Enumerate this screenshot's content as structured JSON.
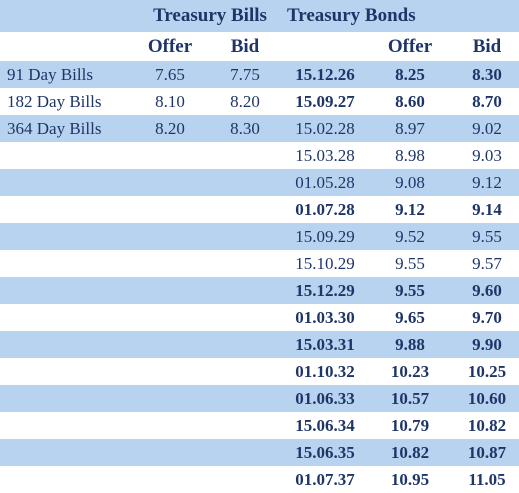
{
  "header": {
    "bills_title": "Treasury Bills",
    "bonds_title": "Treasury Bonds",
    "columns": [
      "Offer",
      "Bid",
      "Offer",
      "Bid"
    ]
  },
  "bills": {
    "rows": [
      [
        "91 Day Bills",
        "7.65",
        "7.75"
      ],
      [
        "182 Day Bills",
        "8.10",
        "8.20"
      ],
      [
        "364 Day Bills",
        "8.20",
        "8.30"
      ]
    ]
  },
  "bonds": {
    "rows": [
      [
        "15.12.26",
        "8.25",
        "8.30"
      ],
      [
        "15.09.27",
        "8.60",
        "8.70"
      ],
      [
        "15.02.28",
        "8.97",
        "9.02"
      ],
      [
        "15.03.28",
        "8.98",
        "9.03"
      ],
      [
        "01.05.28",
        "9.08",
        "9.12"
      ],
      [
        "01.07.28",
        "9.12",
        "9.14"
      ],
      [
        "15.09.29",
        "9.52",
        "9.55"
      ],
      [
        "15.10.29",
        "9.55",
        "9.57"
      ],
      [
        "15.12.29",
        "9.55",
        "9.60"
      ],
      [
        "01.03.30",
        "9.65",
        "9.70"
      ],
      [
        "15.03.31",
        "9.88",
        "9.90"
      ],
      [
        "01.10.32",
        "10.23",
        "10.25"
      ],
      [
        "01.06.33",
        "10.57",
        "10.60"
      ],
      [
        "15.06.34",
        "10.79",
        "10.82"
      ],
      [
        "15.06.35",
        "10.82",
        "10.87"
      ],
      [
        "01.07.37",
        "10.95",
        "11.05"
      ]
    ]
  }
}
